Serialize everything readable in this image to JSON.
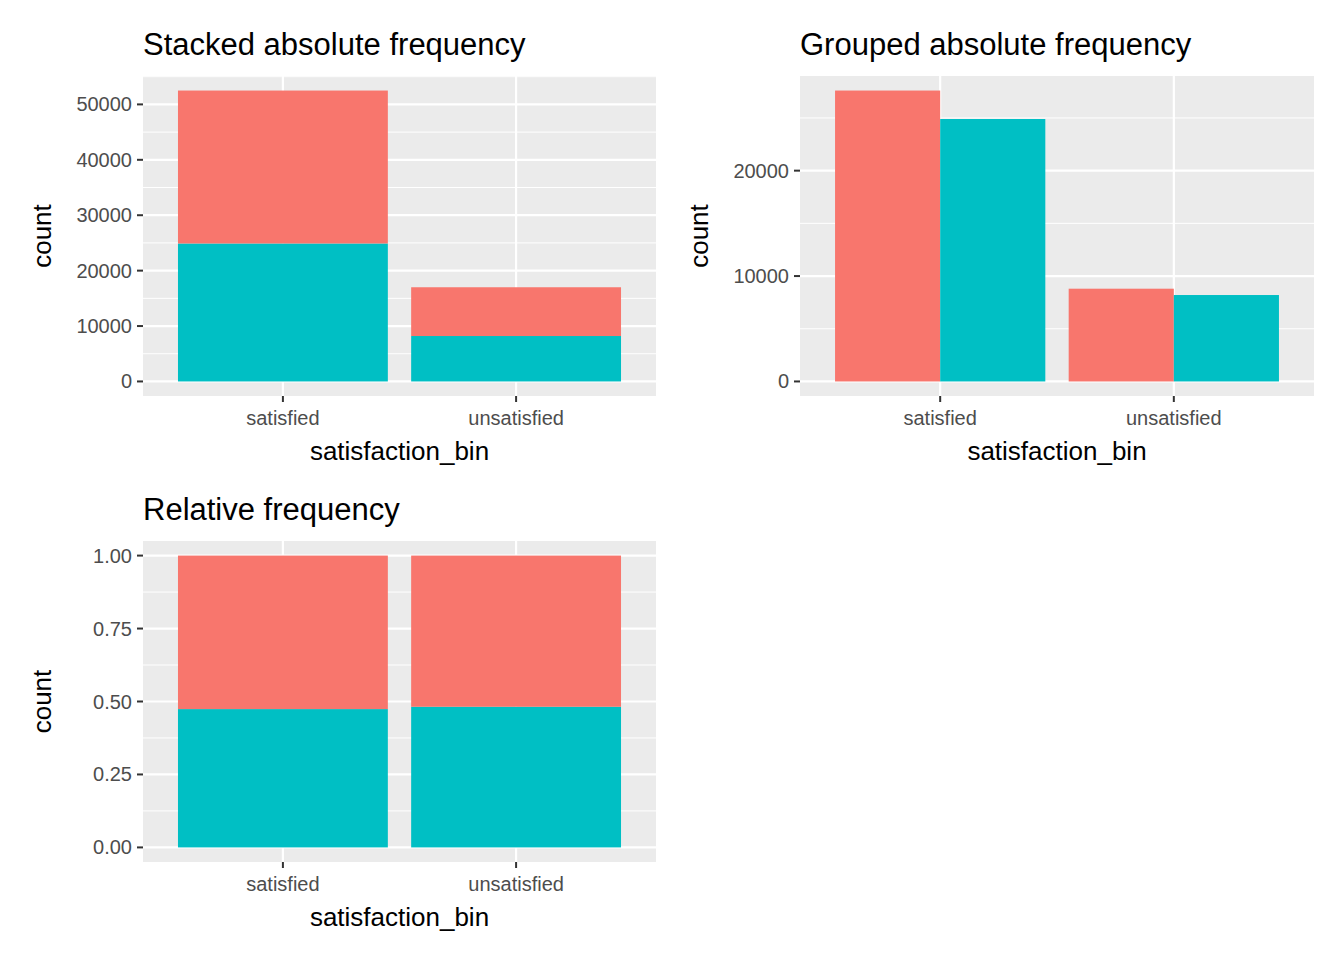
{
  "chart_data": [
    {
      "type": "bar",
      "title": "Stacked absolute frequency",
      "x_label": "satisfaction_bin",
      "y_label": "count",
      "categories": [
        "satisfied",
        "unsatisfied"
      ],
      "series": [
        {
          "color": "#F8766D",
          "values": [
            27600,
            8800
          ]
        },
        {
          "color": "#00BFC4",
          "values": [
            24900,
            8200
          ]
        }
      ],
      "stacked": true,
      "ylim": [
        -2625,
        55125
      ],
      "yticks": [
        0,
        10000,
        20000,
        30000,
        40000,
        50000
      ],
      "grid": true
    },
    {
      "type": "bar",
      "title": "Grouped absolute frequency",
      "x_label": "satisfaction_bin",
      "y_label": "count",
      "categories": [
        "satisfied",
        "unsatisfied"
      ],
      "series": [
        {
          "color": "#F8766D",
          "values": [
            27600,
            8800
          ]
        },
        {
          "color": "#00BFC4",
          "values": [
            24900,
            8200
          ]
        }
      ],
      "stacked": false,
      "ylim": [
        -1380,
        28980
      ],
      "yticks": [
        0,
        10000,
        20000
      ],
      "grid": true
    },
    {
      "type": "bar",
      "title": "Relative frequency",
      "x_label": "satisfaction_bin",
      "y_label": "count",
      "categories": [
        "satisfied",
        "unsatisfied"
      ],
      "series": [
        {
          "color": "#F8766D",
          "values": [
            0.526,
            0.518
          ]
        },
        {
          "color": "#00BFC4",
          "values": [
            0.474,
            0.482
          ]
        }
      ],
      "stacked": true,
      "ylim": [
        -0.05,
        1.05
      ],
      "yticks": [
        {
          "value": 0,
          "label": "0.00"
        },
        0.25,
        {
          "value": 0.5,
          "label": "0.50"
        },
        0.75,
        {
          "value": 1,
          "label": "1.00"
        }
      ],
      "grid": true
    }
  ]
}
